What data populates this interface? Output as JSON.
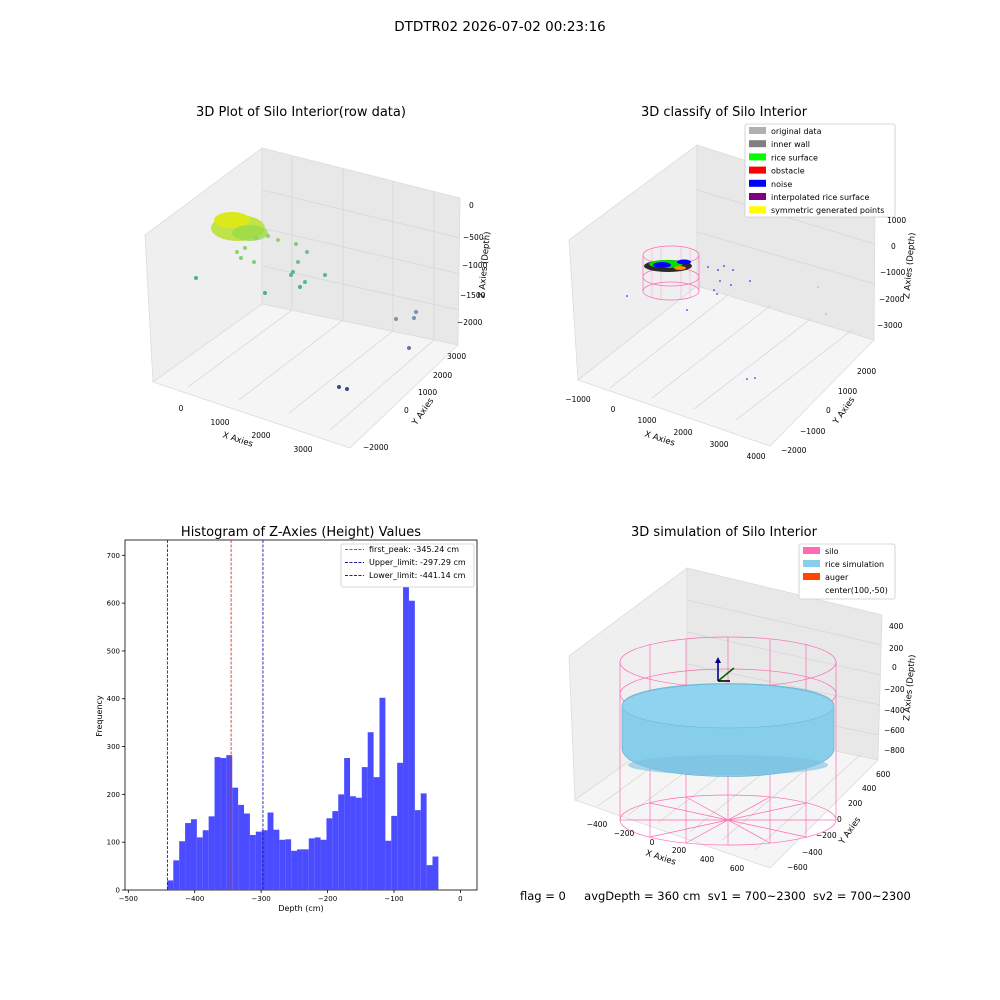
{
  "suptitle": "DTDTR02 2026-07-02 00:23:16",
  "colors": {
    "hist_bar": "#4b4bff",
    "first_peak": "#e03030",
    "limits": "#1a1aa0",
    "silo": "#ff69b4",
    "rice_simulation": "#87ceeb",
    "auger": "#ff4500",
    "pane": "#f2f2f2"
  },
  "raw_plot": {
    "title": "3D Plot of Silo Interior(row data)",
    "xlabel": "X Axies",
    "ylabel": "Y Axies",
    "zlabel": "Z Axies (Depth)",
    "xticks": [
      "0",
      "1000",
      "2000",
      "3000"
    ],
    "yticks": [
      "−2000",
      "0",
      "1000",
      "2000",
      "3000"
    ],
    "zticks": [
      "0",
      "−500",
      "−1000",
      "−1500",
      "−2000"
    ]
  },
  "classify_plot": {
    "title": "3D classify of Silo Interior",
    "xlabel": "X Axies",
    "ylabel": "Y Axies",
    "zlabel": "Z Axies (Depth)",
    "xticks": [
      "−1000",
      "0",
      "1000",
      "2000",
      "3000",
      "4000"
    ],
    "yticks": [
      "−2000",
      "−1000",
      "0",
      "1000",
      "2000"
    ],
    "zticks": [
      "1000",
      "0",
      "−1000",
      "−2000",
      "−3000"
    ],
    "legend": [
      {
        "label": "original data",
        "color": "#b0b0b0"
      },
      {
        "label": "inner wall",
        "color": "#808080"
      },
      {
        "label": "rice surface",
        "color": "#00ff00"
      },
      {
        "label": "obstacle",
        "color": "#ff0000"
      },
      {
        "label": "noise",
        "color": "#0000ff"
      },
      {
        "label": "interpolated rice surface",
        "color": "#800080"
      },
      {
        "label": "symmetric generated points",
        "color": "#ffff00"
      }
    ]
  },
  "simulation_plot": {
    "title": "3D simulation of Silo Interior",
    "xlabel": "X Axies",
    "ylabel": "Y Axies",
    "zlabel": "Z Axies (Depth)",
    "xticks": [
      "−400",
      "−200",
      "0",
      "200",
      "400",
      "600"
    ],
    "yticks": [
      "−600",
      "−400",
      "−200",
      "0",
      "200",
      "400",
      "600"
    ],
    "zticks": [
      "400",
      "200",
      "0",
      "−200",
      "−400",
      "−600",
      "−800"
    ],
    "legend": [
      {
        "label": "silo",
        "color": "#ff69b4"
      },
      {
        "label": "rice simulation",
        "color": "#87ceeb"
      },
      {
        "label": "auger",
        "color": "#ff4500"
      },
      {
        "label": "center(100,-50)",
        "color": ""
      }
    ]
  },
  "status": {
    "flag": "flag = 0",
    "avg_depth": "avgDepth = 360 cm",
    "sv1": "sv1 = 700~2300",
    "sv2": "sv2 = 700~2300"
  },
  "chart_data": {
    "type": "bar",
    "title": "Histogram of Z-Axies (Height) Values",
    "xlabel": "Depth (cm)",
    "ylabel": "Frequency",
    "xlim": [
      -505,
      25
    ],
    "ylim": [
      0,
      732
    ],
    "xticks": [
      -500,
      -400,
      -300,
      -200,
      -100,
      0
    ],
    "xtick_labels": [
      "−500",
      "−400",
      "−300",
      "−200",
      "−100",
      "0"
    ],
    "yticks": [
      0,
      100,
      200,
      300,
      400,
      500,
      600,
      700
    ],
    "bins_start": -441.14,
    "bin_width": 8.87,
    "values": [
      20,
      62,
      102,
      140,
      148,
      110,
      125,
      154,
      278,
      276,
      282,
      214,
      178,
      160,
      115,
      122,
      125,
      162,
      126,
      105,
      106,
      82,
      85,
      85,
      108,
      110,
      105,
      150,
      165,
      200,
      276,
      196,
      193,
      257,
      330,
      236,
      402,
      103,
      155,
      266,
      690,
      605,
      167,
      202,
      52,
      70
    ],
    "vlines": [
      {
        "name": "first_peak",
        "label": "first_peak: -345.24 cm",
        "x": -345.24
      },
      {
        "name": "upper-limit",
        "label": "Upper_limit: -297.29 cm",
        "x": -297.29
      },
      {
        "name": "lower-limit",
        "label": "Lower_limit: -441.14 cm",
        "x": -441.14
      }
    ],
    "legend_position": "top-right",
    "grid": false
  }
}
